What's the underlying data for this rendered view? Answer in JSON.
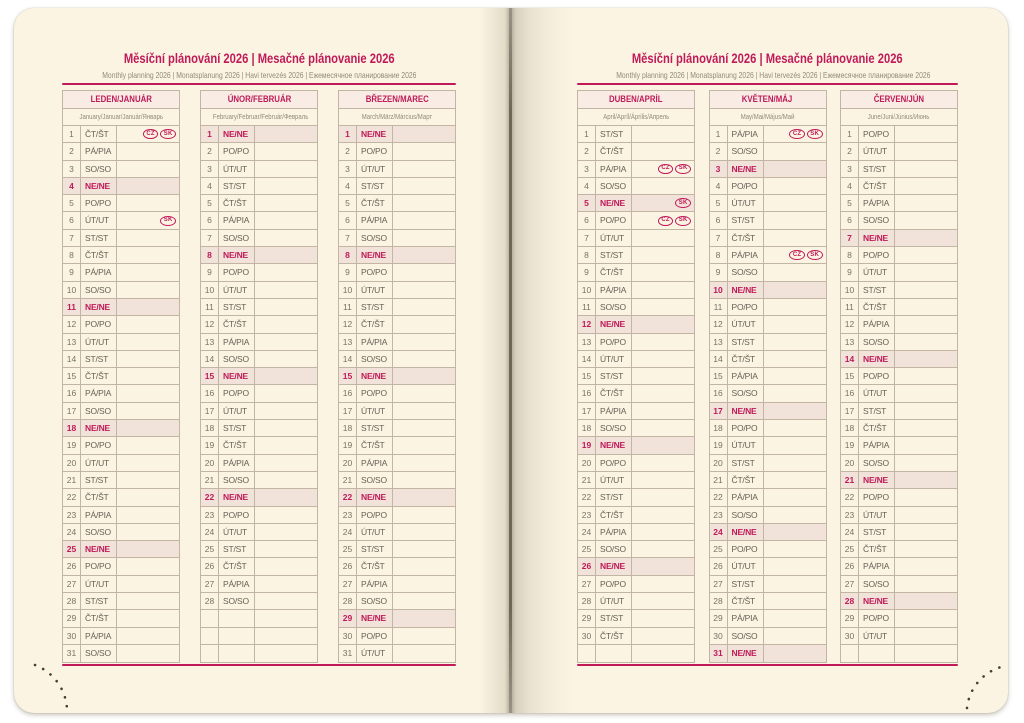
{
  "header": {
    "title": "Měsíční plánování 2026 | Mesačné plánovanie 2026",
    "subtitle": "Monthly planning 2026 | Monatsplanung 2026 | Havi tervezés 2026 | Ежемесячное планирование 2026"
  },
  "colors": {
    "accent": "#c01a58",
    "paper": "#fbf4e3",
    "line": "#c2b5a3",
    "sunbg": "#f2e3da",
    "monthbg": "#f9ece5",
    "text": "#675f54",
    "numtext": "#7a7165",
    "muted": "#93887a"
  },
  "badge_labels": [
    "CZ",
    "SK"
  ],
  "pages": [
    {
      "side": "left",
      "months": [
        {
          "id": "leden",
          "title": "LEDEN/JANUÁR",
          "subtitle": "January/Januar/Január/Январь",
          "empty_rows": 0,
          "days": [
            {
              "n": 1,
              "w": "ČT/ŠT",
              "b": [
                "CZ",
                "SK"
              ]
            },
            {
              "n": 2,
              "w": "PÁ/PIA"
            },
            {
              "n": 3,
              "w": "SO/SO"
            },
            {
              "n": 4,
              "w": "NE/NE",
              "s": 1
            },
            {
              "n": 5,
              "w": "PO/PO"
            },
            {
              "n": 6,
              "w": "ÚT/UT",
              "b": [
                "SK"
              ]
            },
            {
              "n": 7,
              "w": "ST/ST"
            },
            {
              "n": 8,
              "w": "ČT/ŠT"
            },
            {
              "n": 9,
              "w": "PÁ/PIA"
            },
            {
              "n": 10,
              "w": "SO/SO"
            },
            {
              "n": 11,
              "w": "NE/NE",
              "s": 1
            },
            {
              "n": 12,
              "w": "PO/PO"
            },
            {
              "n": 13,
              "w": "ÚT/UT"
            },
            {
              "n": 14,
              "w": "ST/ST"
            },
            {
              "n": 15,
              "w": "ČT/ŠT"
            },
            {
              "n": 16,
              "w": "PÁ/PIA"
            },
            {
              "n": 17,
              "w": "SO/SO"
            },
            {
              "n": 18,
              "w": "NE/NE",
              "s": 1
            },
            {
              "n": 19,
              "w": "PO/PO"
            },
            {
              "n": 20,
              "w": "ÚT/UT"
            },
            {
              "n": 21,
              "w": "ST/ST"
            },
            {
              "n": 22,
              "w": "ČT/ŠT"
            },
            {
              "n": 23,
              "w": "PÁ/PIA"
            },
            {
              "n": 24,
              "w": "SO/SO"
            },
            {
              "n": 25,
              "w": "NE/NE",
              "s": 1
            },
            {
              "n": 26,
              "w": "PO/PO"
            },
            {
              "n": 27,
              "w": "ÚT/UT"
            },
            {
              "n": 28,
              "w": "ST/ST"
            },
            {
              "n": 29,
              "w": "ČT/ŠT"
            },
            {
              "n": 30,
              "w": "PÁ/PIA"
            },
            {
              "n": 31,
              "w": "SO/SO"
            }
          ]
        },
        {
          "id": "unor",
          "title": "ÚNOR/FEBRUÁR",
          "subtitle": "February/Februar/Február/Февраль",
          "empty_rows": 3,
          "days": [
            {
              "n": 1,
              "w": "NE/NE",
              "s": 1
            },
            {
              "n": 2,
              "w": "PO/PO"
            },
            {
              "n": 3,
              "w": "ÚT/UT"
            },
            {
              "n": 4,
              "w": "ST/ST"
            },
            {
              "n": 5,
              "w": "ČT/ŠT"
            },
            {
              "n": 6,
              "w": "PÁ/PIA"
            },
            {
              "n": 7,
              "w": "SO/SO"
            },
            {
              "n": 8,
              "w": "NE/NE",
              "s": 1
            },
            {
              "n": 9,
              "w": "PO/PO"
            },
            {
              "n": 10,
              "w": "ÚT/UT"
            },
            {
              "n": 11,
              "w": "ST/ST"
            },
            {
              "n": 12,
              "w": "ČT/ŠT"
            },
            {
              "n": 13,
              "w": "PÁ/PIA"
            },
            {
              "n": 14,
              "w": "SO/SO"
            },
            {
              "n": 15,
              "w": "NE/NE",
              "s": 1
            },
            {
              "n": 16,
              "w": "PO/PO"
            },
            {
              "n": 17,
              "w": "ÚT/UT"
            },
            {
              "n": 18,
              "w": "ST/ST"
            },
            {
              "n": 19,
              "w": "ČT/ŠT"
            },
            {
              "n": 20,
              "w": "PÁ/PIA"
            },
            {
              "n": 21,
              "w": "SO/SO"
            },
            {
              "n": 22,
              "w": "NE/NE",
              "s": 1
            },
            {
              "n": 23,
              "w": "PO/PO"
            },
            {
              "n": 24,
              "w": "ÚT/UT"
            },
            {
              "n": 25,
              "w": "ST/ST"
            },
            {
              "n": 26,
              "w": "ČT/ŠT"
            },
            {
              "n": 27,
              "w": "PÁ/PIA"
            },
            {
              "n": 28,
              "w": "SO/SO"
            }
          ]
        },
        {
          "id": "brezen",
          "title": "BŘEZEN/MAREC",
          "subtitle": "March/März/Március/Март",
          "empty_rows": 0,
          "days": [
            {
              "n": 1,
              "w": "NE/NE",
              "s": 1
            },
            {
              "n": 2,
              "w": "PO/PO"
            },
            {
              "n": 3,
              "w": "ÚT/UT"
            },
            {
              "n": 4,
              "w": "ST/ST"
            },
            {
              "n": 5,
              "w": "ČT/ŠT"
            },
            {
              "n": 6,
              "w": "PÁ/PIA"
            },
            {
              "n": 7,
              "w": "SO/SO"
            },
            {
              "n": 8,
              "w": "NE/NE",
              "s": 1
            },
            {
              "n": 9,
              "w": "PO/PO"
            },
            {
              "n": 10,
              "w": "ÚT/UT"
            },
            {
              "n": 11,
              "w": "ST/ST"
            },
            {
              "n": 12,
              "w": "ČT/ŠT"
            },
            {
              "n": 13,
              "w": "PÁ/PIA"
            },
            {
              "n": 14,
              "w": "SO/SO"
            },
            {
              "n": 15,
              "w": "NE/NE",
              "s": 1
            },
            {
              "n": 16,
              "w": "PO/PO"
            },
            {
              "n": 17,
              "w": "ÚT/UT"
            },
            {
              "n": 18,
              "w": "ST/ST"
            },
            {
              "n": 19,
              "w": "ČT/ŠT"
            },
            {
              "n": 20,
              "w": "PÁ/PIA"
            },
            {
              "n": 21,
              "w": "SO/SO"
            },
            {
              "n": 22,
              "w": "NE/NE",
              "s": 1
            },
            {
              "n": 23,
              "w": "PO/PO"
            },
            {
              "n": 24,
              "w": "ÚT/UT"
            },
            {
              "n": 25,
              "w": "ST/ST"
            },
            {
              "n": 26,
              "w": "ČT/ŠT"
            },
            {
              "n": 27,
              "w": "PÁ/PIA"
            },
            {
              "n": 28,
              "w": "SO/SO"
            },
            {
              "n": 29,
              "w": "NE/NE",
              "s": 1
            },
            {
              "n": 30,
              "w": "PO/PO"
            },
            {
              "n": 31,
              "w": "ÚT/UT"
            }
          ]
        }
      ]
    },
    {
      "side": "right",
      "months": [
        {
          "id": "duben",
          "title": "DUBEN/APRÍL",
          "subtitle": "April/Apríl/Április/Апрель",
          "empty_rows": 1,
          "days": [
            {
              "n": 1,
              "w": "ST/ST"
            },
            {
              "n": 2,
              "w": "ČT/ŠT"
            },
            {
              "n": 3,
              "w": "PÁ/PIA",
              "b": [
                "CZ",
                "SK"
              ]
            },
            {
              "n": 4,
              "w": "SO/SO"
            },
            {
              "n": 5,
              "w": "NE/NE",
              "s": 1,
              "b": [
                "SK"
              ]
            },
            {
              "n": 6,
              "w": "PO/PO",
              "b": [
                "CZ",
                "SK"
              ]
            },
            {
              "n": 7,
              "w": "ÚT/UT"
            },
            {
              "n": 8,
              "w": "ST/ST"
            },
            {
              "n": 9,
              "w": "ČT/ŠT"
            },
            {
              "n": 10,
              "w": "PÁ/PIA"
            },
            {
              "n": 11,
              "w": "SO/SO"
            },
            {
              "n": 12,
              "w": "NE/NE",
              "s": 1
            },
            {
              "n": 13,
              "w": "PO/PO"
            },
            {
              "n": 14,
              "w": "ÚT/UT"
            },
            {
              "n": 15,
              "w": "ST/ST"
            },
            {
              "n": 16,
              "w": "ČT/ŠT"
            },
            {
              "n": 17,
              "w": "PÁ/PIA"
            },
            {
              "n": 18,
              "w": "SO/SO"
            },
            {
              "n": 19,
              "w": "NE/NE",
              "s": 1
            },
            {
              "n": 20,
              "w": "PO/PO"
            },
            {
              "n": 21,
              "w": "ÚT/UT"
            },
            {
              "n": 22,
              "w": "ST/ST"
            },
            {
              "n": 23,
              "w": "ČT/ŠT"
            },
            {
              "n": 24,
              "w": "PÁ/PIA"
            },
            {
              "n": 25,
              "w": "SO/SO"
            },
            {
              "n": 26,
              "w": "NE/NE",
              "s": 1
            },
            {
              "n": 27,
              "w": "PO/PO"
            },
            {
              "n": 28,
              "w": "ÚT/UT"
            },
            {
              "n": 29,
              "w": "ST/ST"
            },
            {
              "n": 30,
              "w": "ČT/ŠT"
            }
          ]
        },
        {
          "id": "kveten",
          "title": "KVĚTEN/MÁJ",
          "subtitle": "May/Mai/Május/Май",
          "empty_rows": 0,
          "days": [
            {
              "n": 1,
              "w": "PÁ/PIA",
              "b": [
                "CZ",
                "SK"
              ]
            },
            {
              "n": 2,
              "w": "SO/SO"
            },
            {
              "n": 3,
              "w": "NE/NE",
              "s": 1
            },
            {
              "n": 4,
              "w": "PO/PO"
            },
            {
              "n": 5,
              "w": "ÚT/UT"
            },
            {
              "n": 6,
              "w": "ST/ST"
            },
            {
              "n": 7,
              "w": "ČT/ŠT"
            },
            {
              "n": 8,
              "w": "PÁ/PIA",
              "b": [
                "CZ",
                "SK"
              ]
            },
            {
              "n": 9,
              "w": "SO/SO"
            },
            {
              "n": 10,
              "w": "NE/NE",
              "s": 1
            },
            {
              "n": 11,
              "w": "PO/PO"
            },
            {
              "n": 12,
              "w": "ÚT/UT"
            },
            {
              "n": 13,
              "w": "ST/ST"
            },
            {
              "n": 14,
              "w": "ČT/ŠT"
            },
            {
              "n": 15,
              "w": "PÁ/PIA"
            },
            {
              "n": 16,
              "w": "SO/SO"
            },
            {
              "n": 17,
              "w": "NE/NE",
              "s": 1
            },
            {
              "n": 18,
              "w": "PO/PO"
            },
            {
              "n": 19,
              "w": "ÚT/UT"
            },
            {
              "n": 20,
              "w": "ST/ST"
            },
            {
              "n": 21,
              "w": "ČT/ŠT"
            },
            {
              "n": 22,
              "w": "PÁ/PIA"
            },
            {
              "n": 23,
              "w": "SO/SO"
            },
            {
              "n": 24,
              "w": "NE/NE",
              "s": 1
            },
            {
              "n": 25,
              "w": "PO/PO"
            },
            {
              "n": 26,
              "w": "ÚT/UT"
            },
            {
              "n": 27,
              "w": "ST/ST"
            },
            {
              "n": 28,
              "w": "ČT/ŠT"
            },
            {
              "n": 29,
              "w": "PÁ/PIA"
            },
            {
              "n": 30,
              "w": "SO/SO"
            },
            {
              "n": 31,
              "w": "NE/NE",
              "s": 1
            }
          ]
        },
        {
          "id": "cerven",
          "title": "ČERVEN/JÚN",
          "subtitle": "June/Juni/Június/Июнь",
          "empty_rows": 1,
          "days": [
            {
              "n": 1,
              "w": "PO/PO"
            },
            {
              "n": 2,
              "w": "ÚT/UT"
            },
            {
              "n": 3,
              "w": "ST/ST"
            },
            {
              "n": 4,
              "w": "ČT/ŠT"
            },
            {
              "n": 5,
              "w": "PÁ/PIA"
            },
            {
              "n": 6,
              "w": "SO/SO"
            },
            {
              "n": 7,
              "w": "NE/NE",
              "s": 1
            },
            {
              "n": 8,
              "w": "PO/PO"
            },
            {
              "n": 9,
              "w": "ÚT/UT"
            },
            {
              "n": 10,
              "w": "ST/ST"
            },
            {
              "n": 11,
              "w": "ČT/ŠT"
            },
            {
              "n": 12,
              "w": "PÁ/PIA"
            },
            {
              "n": 13,
              "w": "SO/SO"
            },
            {
              "n": 14,
              "w": "NE/NE",
              "s": 1
            },
            {
              "n": 15,
              "w": "PO/PO"
            },
            {
              "n": 16,
              "w": "ÚT/UT"
            },
            {
              "n": 17,
              "w": "ST/ST"
            },
            {
              "n": 18,
              "w": "ČT/ŠT"
            },
            {
              "n": 19,
              "w": "PÁ/PIA"
            },
            {
              "n": 20,
              "w": "SO/SO"
            },
            {
              "n": 21,
              "w": "NE/NE",
              "s": 1
            },
            {
              "n": 22,
              "w": "PO/PO"
            },
            {
              "n": 23,
              "w": "ÚT/UT"
            },
            {
              "n": 24,
              "w": "ST/ST"
            },
            {
              "n": 25,
              "w": "ČT/ŠT"
            },
            {
              "n": 26,
              "w": "PÁ/PIA"
            },
            {
              "n": 27,
              "w": "SO/SO"
            },
            {
              "n": 28,
              "w": "NE/NE",
              "s": 1
            },
            {
              "n": 29,
              "w": "PO/PO"
            },
            {
              "n": 30,
              "w": "ÚT/UT"
            }
          ]
        }
      ]
    }
  ]
}
